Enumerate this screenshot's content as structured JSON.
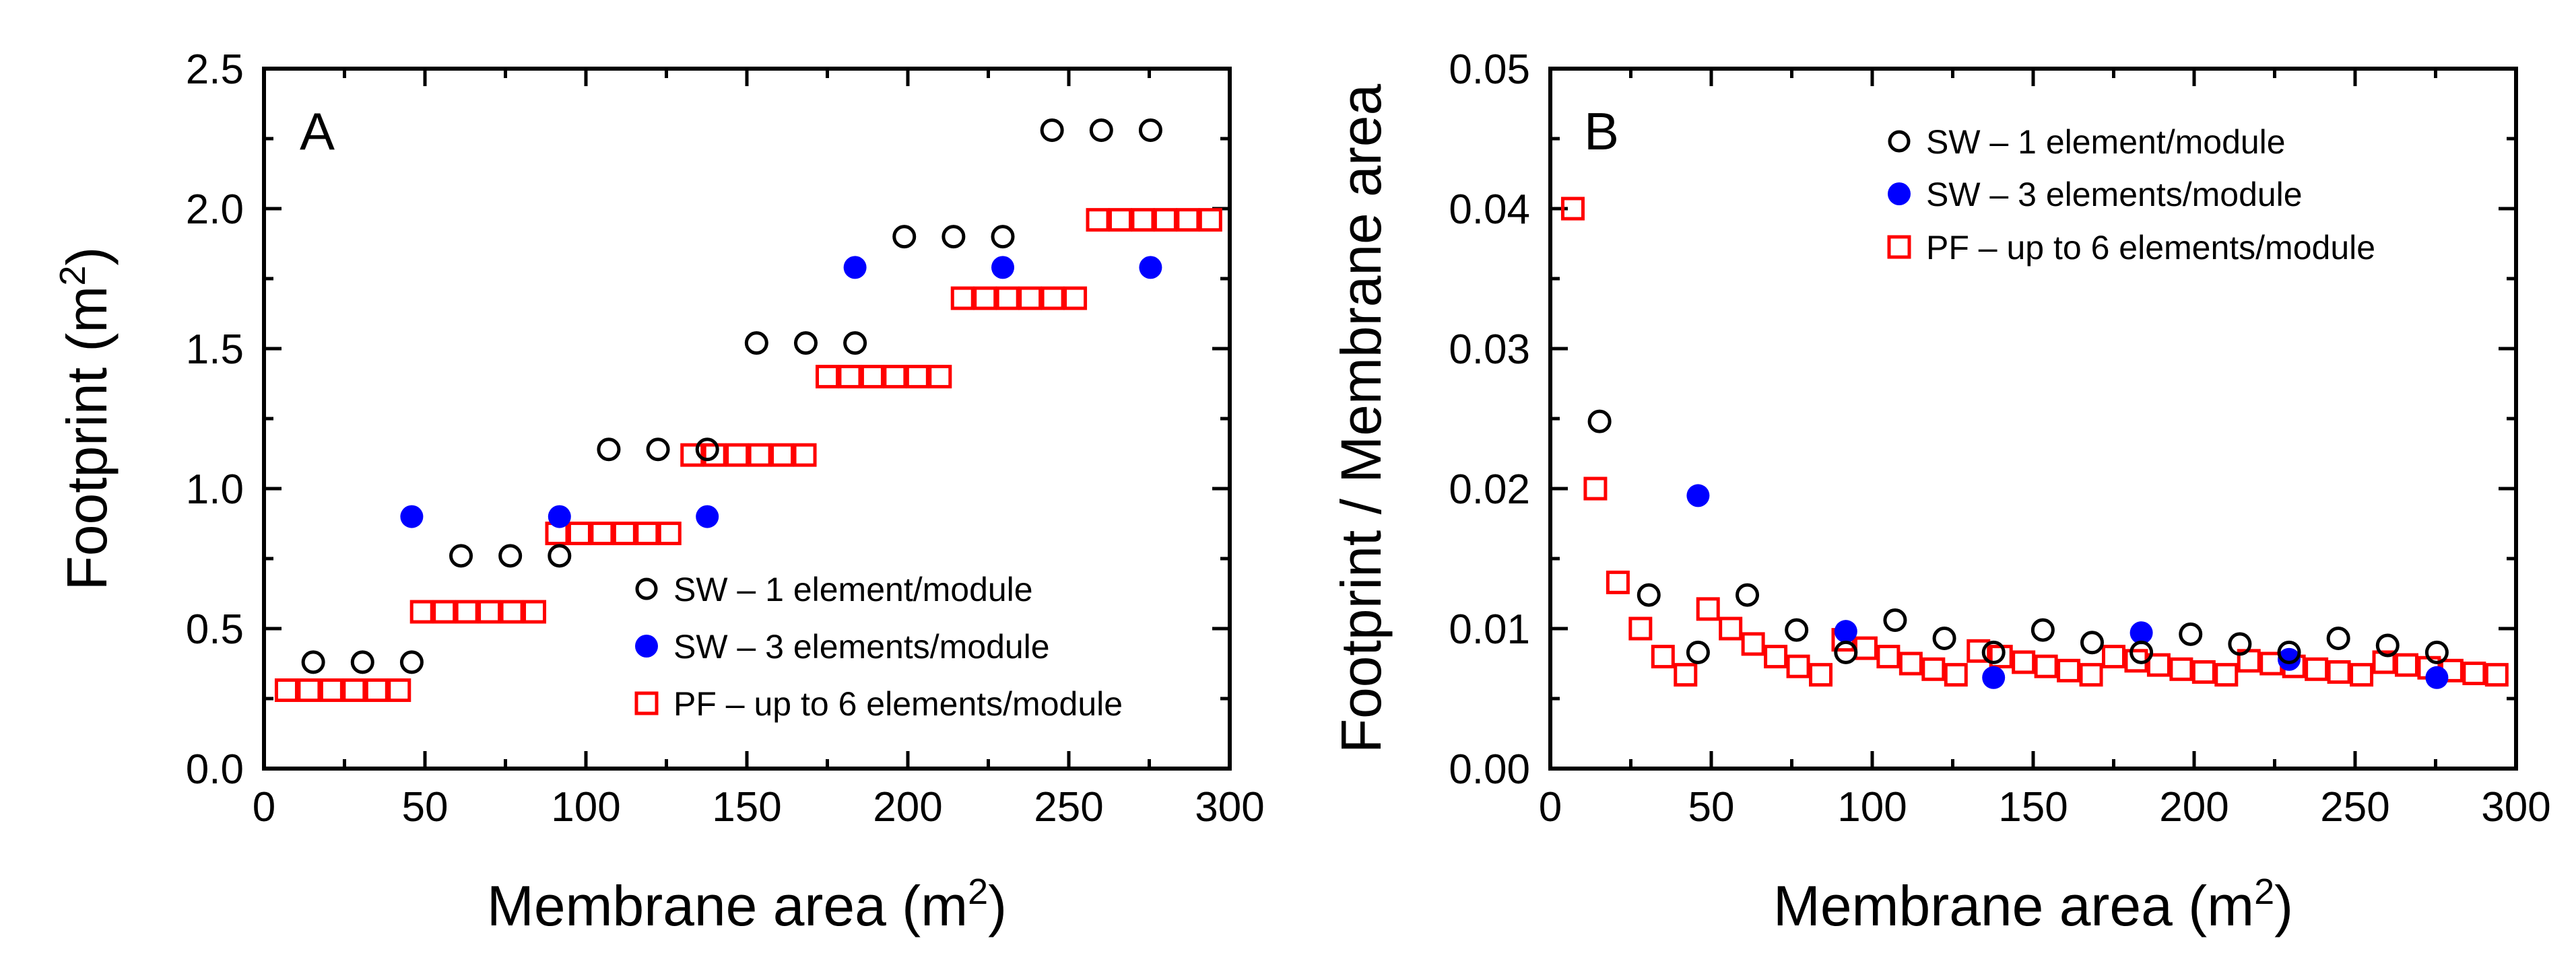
{
  "chart_data": [
    {
      "panel": "A",
      "type": "scatter",
      "xlabel": "Membrane area (m",
      "xlabel_sup": "2",
      "xlabel_end": ")",
      "ylabel": "Footprint (m",
      "ylabel_sup": "2",
      "ylabel_end": ")",
      "xlim": [
        0,
        300
      ],
      "ylim": [
        0,
        2.5
      ],
      "xticks": [
        0,
        50,
        100,
        150,
        200,
        250,
        300
      ],
      "yticks": [
        0.0,
        0.5,
        1.0,
        1.5,
        2.0,
        2.5
      ],
      "ytick_labels": [
        "0.0",
        "0.5",
        "1.0",
        "1.5",
        "2.0",
        "2.5"
      ],
      "xtick_labels": [
        "0",
        "50",
        "100",
        "150",
        "200",
        "250",
        "300"
      ],
      "legend_position": "lower-right",
      "series": [
        {
          "name": "SW – 1 element/module",
          "marker": "open-circle",
          "color": "#000000",
          "points": [
            [
              15.3,
              0.38
            ],
            [
              30.6,
              0.38
            ],
            [
              45.9,
              0.38
            ],
            [
              61.2,
              0.76
            ],
            [
              76.5,
              0.76
            ],
            [
              91.8,
              0.76
            ],
            [
              107.1,
              1.14
            ],
            [
              122.4,
              1.14
            ],
            [
              137.7,
              1.14
            ],
            [
              153,
              1.52
            ],
            [
              168.3,
              1.52
            ],
            [
              183.6,
              1.52
            ],
            [
              198.9,
              1.9
            ],
            [
              214.2,
              1.9
            ],
            [
              229.5,
              1.9
            ],
            [
              244.8,
              2.28
            ],
            [
              260.1,
              2.28
            ],
            [
              275.4,
              2.28
            ]
          ]
        },
        {
          "name": "SW – 3 elements/module",
          "marker": "filled-circle",
          "color": "#0000ff",
          "points": [
            [
              45.9,
              0.9
            ],
            [
              91.8,
              0.9
            ],
            [
              137.7,
              0.9
            ],
            [
              183.6,
              1.79
            ],
            [
              229.5,
              1.79
            ],
            [
              275.4,
              1.79
            ]
          ]
        },
        {
          "name": "PF – up to 6 elements/module",
          "marker": "open-square",
          "color": "#ff0000",
          "points": [
            [
              7,
              0.28
            ],
            [
              14,
              0.28
            ],
            [
              21,
              0.28
            ],
            [
              28,
              0.28
            ],
            [
              35,
              0.28
            ],
            [
              42,
              0.28
            ],
            [
              49,
              0.56
            ],
            [
              56,
              0.56
            ],
            [
              63,
              0.56
            ],
            [
              70,
              0.56
            ],
            [
              77,
              0.56
            ],
            [
              84,
              0.56
            ],
            [
              91,
              0.84
            ],
            [
              98,
              0.84
            ],
            [
              105,
              0.84
            ],
            [
              112,
              0.84
            ],
            [
              119,
              0.84
            ],
            [
              126,
              0.84
            ],
            [
              133,
              1.12
            ],
            [
              140,
              1.12
            ],
            [
              147,
              1.12
            ],
            [
              154,
              1.12
            ],
            [
              161,
              1.12
            ],
            [
              168,
              1.12
            ],
            [
              175,
              1.4
            ],
            [
              182,
              1.4
            ],
            [
              189,
              1.4
            ],
            [
              196,
              1.4
            ],
            [
              203,
              1.4
            ],
            [
              210,
              1.4
            ],
            [
              217,
              1.68
            ],
            [
              224,
              1.68
            ],
            [
              231,
              1.68
            ],
            [
              238,
              1.68
            ],
            [
              245,
              1.68
            ],
            [
              252,
              1.68
            ],
            [
              259,
              1.96
            ],
            [
              266,
              1.96
            ],
            [
              273,
              1.96
            ],
            [
              280,
              1.96
            ],
            [
              287,
              1.96
            ],
            [
              294,
              1.96
            ]
          ]
        }
      ]
    },
    {
      "panel": "B",
      "type": "scatter",
      "xlabel": "Membrane area (m",
      "xlabel_sup": "2",
      "xlabel_end": ")",
      "ylabel": "Footprint / Membrane area",
      "xlim": [
        0,
        300
      ],
      "ylim": [
        0,
        0.05
      ],
      "xticks": [
        0,
        50,
        100,
        150,
        200,
        250,
        300
      ],
      "yticks": [
        0,
        0.01,
        0.02,
        0.03,
        0.04,
        0.05
      ],
      "ytick_labels": [
        "0.00",
        "0.01",
        "0.02",
        "0.03",
        "0.04",
        "0.05"
      ],
      "xtick_labels": [
        "0",
        "50",
        "100",
        "150",
        "200",
        "250",
        "300"
      ],
      "legend_position": "top-right",
      "series": [
        {
          "name": "SW – 1 element/module",
          "marker": "open-circle",
          "color": "#000000",
          "points": [
            [
              15.3,
              0.0248
            ],
            [
              30.6,
              0.0124
            ],
            [
              45.9,
              0.0083
            ],
            [
              61.2,
              0.0124
            ],
            [
              76.5,
              0.0099
            ],
            [
              91.8,
              0.0083
            ],
            [
              107.1,
              0.0106
            ],
            [
              122.4,
              0.0093
            ],
            [
              137.7,
              0.0083
            ],
            [
              153,
              0.0099
            ],
            [
              168.3,
              0.009
            ],
            [
              183.6,
              0.0083
            ],
            [
              198.9,
              0.0096
            ],
            [
              214.2,
              0.0089
            ],
            [
              229.5,
              0.0083
            ],
            [
              244.8,
              0.0093
            ],
            [
              260.1,
              0.0088
            ],
            [
              275.4,
              0.0083
            ]
          ]
        },
        {
          "name": "SW – 3 elements/module",
          "marker": "filled-circle",
          "color": "#0000ff",
          "points": [
            [
              45.9,
              0.0195
            ],
            [
              91.8,
              0.0098
            ],
            [
              137.7,
              0.0065
            ],
            [
              183.6,
              0.0097
            ],
            [
              229.5,
              0.0078
            ],
            [
              275.4,
              0.0065
            ]
          ]
        },
        {
          "name": "PF – up to 6 elements/module",
          "marker": "open-square",
          "color": "#ff0000",
          "points": [
            [
              7,
              0.04
            ],
            [
              14,
              0.02
            ],
            [
              21,
              0.0133
            ],
            [
              28,
              0.01
            ],
            [
              35,
              0.008
            ],
            [
              42,
              0.0067
            ],
            [
              49,
              0.0114
            ],
            [
              56,
              0.01
            ],
            [
              63,
              0.0089
            ],
            [
              70,
              0.008
            ],
            [
              77,
              0.0073
            ],
            [
              84,
              0.0067
            ],
            [
              91,
              0.0092
            ],
            [
              98,
              0.0086
            ],
            [
              105,
              0.008
            ],
            [
              112,
              0.0075
            ],
            [
              119,
              0.0071
            ],
            [
              126,
              0.0067
            ],
            [
              133,
              0.0084
            ],
            [
              140,
              0.008
            ],
            [
              147,
              0.0076
            ],
            [
              154,
              0.0073
            ],
            [
              161,
              0.007
            ],
            [
              168,
              0.0067
            ],
            [
              175,
              0.008
            ],
            [
              182,
              0.0077
            ],
            [
              189,
              0.0074
            ],
            [
              196,
              0.0071
            ],
            [
              203,
              0.0069
            ],
            [
              210,
              0.0067
            ],
            [
              217,
              0.0077
            ],
            [
              224,
              0.0075
            ],
            [
              231,
              0.0073
            ],
            [
              238,
              0.0071
            ],
            [
              245,
              0.0069
            ],
            [
              252,
              0.0067
            ],
            [
              259,
              0.0076
            ],
            [
              266,
              0.0074
            ],
            [
              273,
              0.0072
            ],
            [
              280,
              0.007
            ],
            [
              287,
              0.0068
            ],
            [
              294,
              0.0067
            ]
          ]
        }
      ]
    }
  ]
}
